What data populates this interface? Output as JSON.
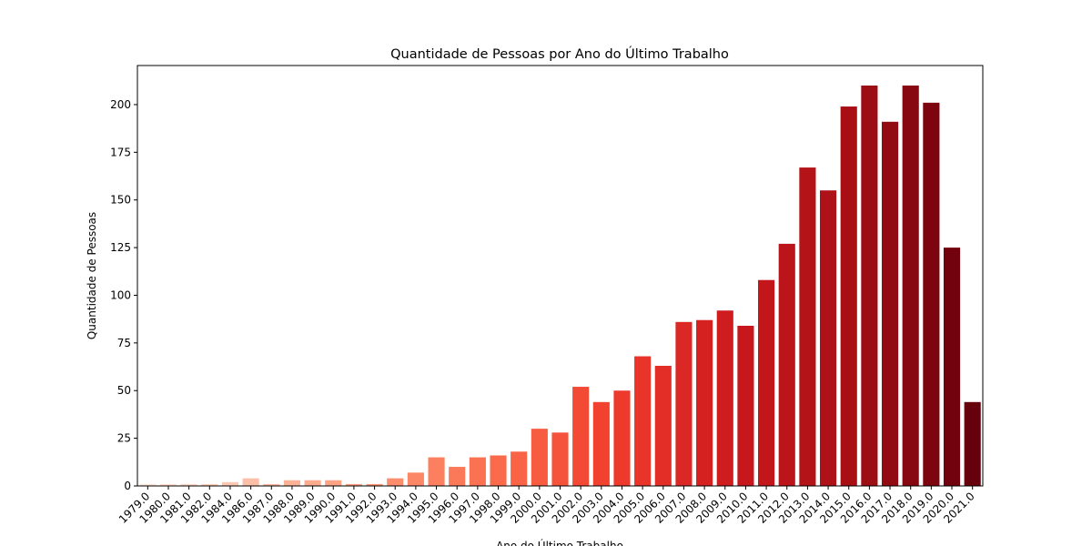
{
  "chart_data": {
    "type": "bar",
    "title": "Quantidade de Pessoas por Ano do Último Trabalho",
    "x_label": "Ano do Último Trabalho",
    "y_label": "Quantidade de Pessoas",
    "categories": [
      "1979.0",
      "1980.0",
      "1981.0",
      "1982.0",
      "1984.0",
      "1986.0",
      "1987.0",
      "1988.0",
      "1989.0",
      "1990.0",
      "1991.0",
      "1992.0",
      "1993.0",
      "1994.0",
      "1995.0",
      "1996.0",
      "1997.0",
      "1998.0",
      "1999.0",
      "2000.0",
      "2001.0",
      "2002.0",
      "2003.0",
      "2004.0",
      "2005.0",
      "2006.0",
      "2007.0",
      "2008.0",
      "2009.0",
      "2010.0",
      "2011.0",
      "2012.0",
      "2013.0",
      "2014.0",
      "2015.0",
      "2016.0",
      "2017.0",
      "2018.0",
      "2019.0",
      "2020.0",
      "2021.0"
    ],
    "values": [
      1,
      1,
      1,
      1,
      2,
      4,
      1,
      3,
      3,
      3,
      1,
      1,
      4,
      7,
      15,
      10,
      15,
      16,
      18,
      30,
      28,
      52,
      44,
      50,
      68,
      63,
      86,
      87,
      92,
      84,
      108,
      127,
      167,
      155,
      199,
      210,
      191,
      210,
      201,
      125,
      44
    ],
    "palette": [
      "#fee5d9",
      "#fcbba1",
      "#fc9272",
      "#fb6a4a",
      "#ef3b2c",
      "#cb181d",
      "#a50f15",
      "#67000d"
    ],
    "ylim": [
      0,
      220.5
    ],
    "yticks": [
      0,
      25,
      50,
      75,
      100,
      125,
      150,
      175,
      200
    ],
    "grid": false
  }
}
